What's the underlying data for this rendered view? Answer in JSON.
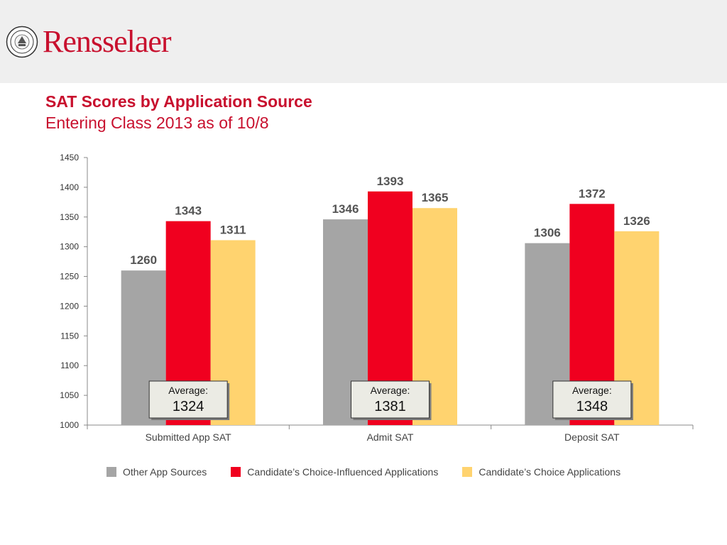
{
  "header": {
    "brand": "Rensselaer",
    "brand_color": "#c8102e",
    "seal_icon": "university-seal-icon"
  },
  "title": "SAT Scores by Application Source",
  "subtitle": "Entering Class 2013 as of 10/8",
  "chart_data": {
    "type": "bar",
    "categories": [
      "Submitted App SAT",
      "Admit SAT",
      "Deposit SAT"
    ],
    "series": [
      {
        "name": "Other App Sources",
        "values": [
          1260,
          1346,
          1306
        ],
        "color": "#a5a5a5"
      },
      {
        "name": "Candidate’s Choice-Influenced Applications",
        "values": [
          1343,
          1393,
          1372
        ],
        "color": "#f0001f"
      },
      {
        "name": "Candidate’s Choice Applications",
        "values": [
          1311,
          1365,
          1326
        ],
        "color": "#ffd36f"
      }
    ],
    "yticks": [
      1000,
      1050,
      1100,
      1150,
      1200,
      1250,
      1300,
      1350,
      1400,
      1450
    ],
    "ylim": [
      1000,
      1450
    ],
    "grid": false,
    "legend_position": "bottom",
    "averages": {
      "label": "Average:",
      "values": [
        "1324",
        "1381",
        "1348"
      ]
    }
  }
}
